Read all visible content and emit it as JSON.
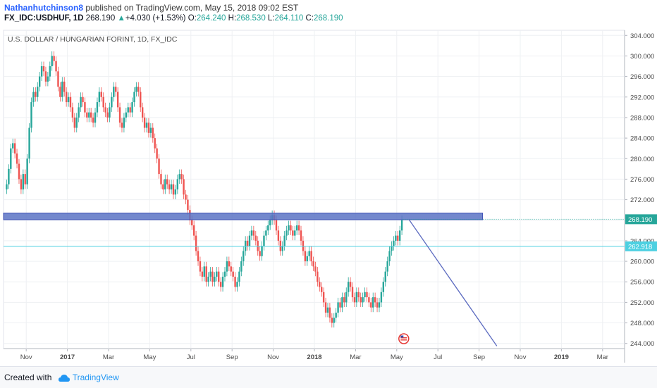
{
  "header": {
    "author": "Nathanhutchinson8",
    "published": " published on TradingView.com, May 15, 2018 09:02 EST",
    "symbol": "FX_IDC:USDHUF, 1D",
    "last": "268.190",
    "change": "+4.030 (+1.53%)",
    "o_label": "O:",
    "o": "264.240",
    "h_label": "H:",
    "h": "268.530",
    "l_label": "L:",
    "l": "264.110",
    "c_label": "C:",
    "c": "268.190"
  },
  "footer": {
    "created_with": "Created with",
    "brand": "TradingView"
  },
  "chart_data": {
    "type": "candlestick",
    "title": "U.S. DOLLAR / HUNGARIAN FORINT, 1D, FX_IDC",
    "ylim": [
      243,
      305
    ],
    "y_ticks": [
      "244.000",
      "248.000",
      "252.000",
      "256.000",
      "260.000",
      "264.000",
      "268.000",
      "272.000",
      "276.000",
      "280.000",
      "284.000",
      "288.000",
      "292.000",
      "296.000",
      "300.000",
      "304.000"
    ],
    "x_ticks": [
      "Nov",
      "2017",
      "Mar",
      "May",
      "Jul",
      "Sep",
      "Nov",
      "2018",
      "Mar",
      "May",
      "Jul",
      "Sep",
      "Nov",
      "2019",
      "Mar"
    ],
    "price_labels": {
      "last": "268.190",
      "level": "262.918"
    },
    "grid": true,
    "colors": {
      "up": "#26a69a",
      "down": "#ef5350",
      "zone": "#5b73c4",
      "level": "#4dd0e1",
      "projection": "#5c6bc0"
    },
    "zone": {
      "low": 268.1,
      "high": 269.4,
      "start": "Oct 2016",
      "end": "Sep 2018"
    },
    "level_line": 262.918,
    "projection": {
      "from": [
        "May 2018",
        268.2
      ],
      "to": [
        "Oct 2018",
        243.5
      ]
    },
    "series": [
      {
        "month": "Oct 2016",
        "values": [
          275,
          278,
          282,
          283,
          281,
          279,
          276,
          274,
          277,
          275
        ]
      },
      {
        "month": "Nov 2016",
        "values": [
          280,
          286,
          291,
          293,
          292,
          294,
          296,
          298,
          297,
          295
        ]
      },
      {
        "month": "Dec 2016",
        "values": [
          296,
          298,
          300,
          299,
          297,
          294,
          292,
          295,
          293,
          291
        ]
      },
      {
        "month": "Jan 2017",
        "values": [
          292,
          290,
          288,
          286,
          288,
          290,
          292,
          291,
          289,
          288
        ]
      },
      {
        "month": "Feb 2017",
        "values": [
          289,
          288,
          287,
          289,
          291,
          293,
          292,
          290,
          289,
          288
        ]
      },
      {
        "month": "Mar 2017",
        "values": [
          290,
          292,
          294,
          293,
          290,
          287,
          286,
          288,
          289,
          290
        ]
      },
      {
        "month": "Apr 2017",
        "values": [
          289,
          291,
          293,
          294,
          293,
          290,
          288,
          286,
          287,
          285
        ]
      },
      {
        "month": "May 2017",
        "values": [
          286,
          284,
          282,
          280,
          277,
          275,
          274,
          276,
          275,
          274
        ]
      },
      {
        "month": "Jun 2017",
        "values": [
          275,
          273,
          274,
          276,
          277,
          276,
          273,
          272,
          270,
          268
        ]
      },
      {
        "month": "Jul 2017",
        "values": [
          267,
          265,
          262,
          260,
          258,
          257,
          259,
          256,
          257,
          258
        ]
      },
      {
        "month": "Aug 2017",
        "values": [
          256,
          257,
          258,
          256,
          255,
          257,
          258,
          260,
          259,
          258
        ]
      },
      {
        "month": "Sep 2017",
        "values": [
          257,
          255,
          256,
          258,
          260,
          262,
          264,
          263,
          265,
          266
        ]
      },
      {
        "month": "Oct 2017",
        "values": [
          265,
          264,
          262,
          261,
          263,
          265,
          266,
          267,
          268,
          269
        ]
      },
      {
        "month": "Nov 2017",
        "values": [
          268,
          266,
          264,
          262,
          263,
          265,
          266,
          267,
          266,
          265
        ]
      },
      {
        "month": "Dec 2017",
        "values": [
          266,
          267,
          266,
          264,
          262,
          260,
          261,
          262,
          260,
          259
        ]
      },
      {
        "month": "Jan 2018",
        "values": [
          258,
          256,
          255,
          254,
          252,
          250,
          251,
          249,
          248,
          249
        ]
      },
      {
        "month": "Feb 2018",
        "values": [
          250,
          252,
          251,
          253,
          252,
          254,
          256,
          255,
          253,
          252
        ]
      },
      {
        "month": "Mar 2018",
        "values": [
          254,
          253,
          252,
          253,
          254,
          253,
          252,
          251,
          253,
          252
        ]
      },
      {
        "month": "Apr 2018",
        "values": [
          251,
          252,
          254,
          256,
          258,
          260,
          262,
          263,
          264,
          265
        ]
      },
      {
        "month": "May 2018",
        "values": [
          264,
          266,
          268
        ]
      }
    ]
  }
}
